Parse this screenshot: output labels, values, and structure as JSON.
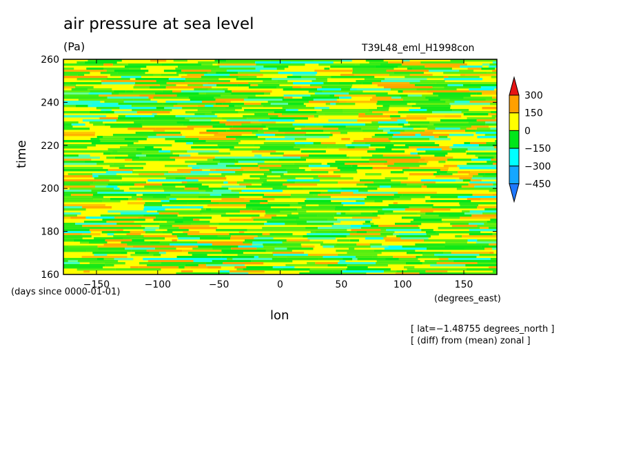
{
  "chart_data": {
    "type": "heatmap",
    "title": "air pressure at sea level",
    "units": "(Pa)",
    "run_label": "T39L48_eml_H1998con",
    "xlabel": "lon",
    "ylabel": "time",
    "x_unit_label": "(degrees_east)",
    "y_unit_label": "(days since 0000-01-01)",
    "xlim": [
      -177,
      177
    ],
    "ylim": [
      160,
      260
    ],
    "x_ticks": [
      -150,
      -100,
      -50,
      0,
      50,
      100,
      150
    ],
    "x_tick_labels": [
      "−150",
      "−100",
      "−50",
      "0",
      "50",
      "100",
      "150"
    ],
    "y_ticks": [
      160,
      180,
      200,
      220,
      240,
      260
    ],
    "y_tick_labels": [
      "160",
      "180",
      "200",
      "220",
      "240",
      "260"
    ],
    "colorbar": {
      "levels": [
        -450,
        -300,
        -150,
        0,
        150,
        300
      ],
      "level_labels": [
        "−450",
        "−300",
        "−150",
        "0",
        "150",
        "300"
      ],
      "colors": [
        "#1e78ff",
        "#15a7ff",
        "#00ffff",
        "#00e61a",
        "#ffff00",
        "#ffa000",
        "#e61414"
      ]
    },
    "annotations": [
      "[ lat=−1.48755 degrees_north ]",
      "[ (diff) from (mean) zonal ]"
    ]
  }
}
